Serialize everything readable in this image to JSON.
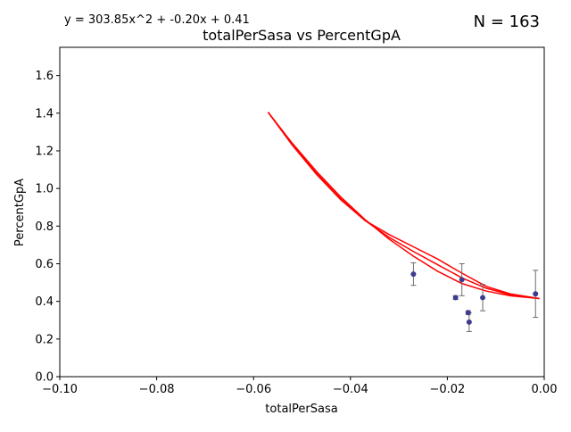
{
  "chart_data": {
    "type": "scatter",
    "title": "totalPerSasa vs PercentGpA",
    "xlabel": "totalPerSasa",
    "ylabel": "PercentGpA",
    "equation": "y = 303.85x^2 + -0.20x + 0.41",
    "n_label": "N = 163",
    "xlim": [
      -0.1,
      0.0
    ],
    "ylim": [
      0.0,
      1.75
    ],
    "x_ticks": [
      -0.1,
      -0.08,
      -0.06,
      -0.04,
      -0.02,
      0.0
    ],
    "x_tick_labels": [
      "−0.10",
      "−0.08",
      "−0.06",
      "−0.04",
      "−0.02",
      "0.00"
    ],
    "y_ticks": [
      0.0,
      0.2,
      0.4,
      0.6,
      0.8,
      1.0,
      1.2,
      1.4,
      1.6
    ],
    "y_tick_labels": [
      "0.0",
      "0.2",
      "0.4",
      "0.6",
      "0.8",
      "1.0",
      "1.2",
      "1.4",
      "1.6"
    ],
    "grid": false,
    "points": [
      {
        "x": -0.027,
        "y": 0.545,
        "err": 0.06
      },
      {
        "x": -0.0183,
        "y": 0.42,
        "err": 0.01
      },
      {
        "x": -0.017,
        "y": 0.515,
        "err": 0.085
      },
      {
        "x": -0.0157,
        "y": 0.34,
        "err": 0.01
      },
      {
        "x": -0.0155,
        "y": 0.29,
        "err": 0.05
      },
      {
        "x": -0.0127,
        "y": 0.42,
        "err": 0.07
      },
      {
        "x": -0.0018,
        "y": 0.44,
        "err": 0.125
      }
    ],
    "fit_curves": [
      {
        "x": [
          -0.057,
          -0.052,
          -0.047,
          -0.042,
          -0.037,
          -0.032,
          -0.027,
          -0.022,
          -0.017,
          -0.012,
          -0.007,
          -0.001
        ],
        "y": [
          1.405,
          1.24,
          1.09,
          0.955,
          0.835,
          0.73,
          0.64,
          0.56,
          0.495,
          0.455,
          0.43,
          0.415
        ]
      },
      {
        "x": [
          -0.057,
          -0.052,
          -0.047,
          -0.042,
          -0.037,
          -0.032,
          -0.027,
          -0.022,
          -0.017,
          -0.012,
          -0.007,
          -0.001
        ],
        "y": [
          1.405,
          1.235,
          1.08,
          0.945,
          0.83,
          0.74,
          0.665,
          0.595,
          0.525,
          0.47,
          0.435,
          0.415
        ]
      },
      {
        "x": [
          -0.057,
          -0.052,
          -0.047,
          -0.042,
          -0.037,
          -0.032,
          -0.027,
          -0.022,
          -0.017,
          -0.012,
          -0.007,
          -0.001
        ],
        "y": [
          1.405,
          1.23,
          1.075,
          0.94,
          0.83,
          0.755,
          0.69,
          0.625,
          0.55,
          0.48,
          0.44,
          0.415
        ]
      }
    ],
    "colors": {
      "points": "#3f3b8f",
      "errorbars": "#6b6b6b",
      "fit": "#ff0000",
      "axes": "#000000"
    }
  }
}
